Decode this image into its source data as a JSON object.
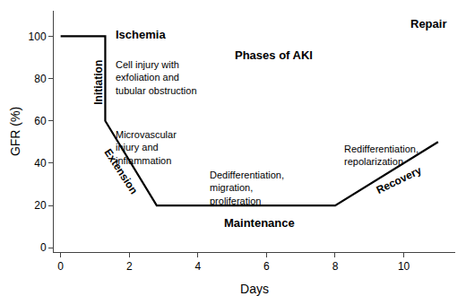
{
  "chart_data": {
    "type": "line",
    "x": [
      0,
      1.3,
      1.3,
      2.8,
      4.0,
      8.0,
      11.0
    ],
    "values": [
      100,
      100,
      60,
      20,
      20,
      20,
      50
    ],
    "color": "#000000",
    "xlim": [
      -0.2,
      11.5
    ],
    "ylim": [
      -2,
      112
    ],
    "xticks": [
      0,
      2,
      4,
      6,
      8,
      10
    ],
    "yticks": [
      0,
      20,
      40,
      60,
      80,
      100
    ],
    "xlabel": "Days",
    "ylabel": "GFR (%)",
    "grid": false,
    "annotations": [
      {
        "text": "Ischemia",
        "x": 1.55,
        "y": 105
      },
      {
        "text": "Repair",
        "x": 11.3,
        "y": 110
      },
      {
        "text": "Phases of AKI",
        "x": 6.2,
        "y": 95
      },
      {
        "text": "Cell injury with\nexfoliation and\ntubular obstruction",
        "x": 1.55,
        "y": 90
      },
      {
        "text": "Microvascular\ninjury and\ninflammation",
        "x": 1.55,
        "y": 57
      },
      {
        "text": "Dedifferentiation,\nmigration,\nproliferation",
        "x": 4.3,
        "y": 38
      },
      {
        "text": "Redifferentiation,\nrepolarization",
        "x": 8.2,
        "y": 50
      },
      {
        "text": "Maintenance",
        "x": 5.8,
        "y": 16
      },
      {
        "text": "Initiation",
        "x": 1.12,
        "y": 78
      },
      {
        "text": "Extension",
        "x": 1.75,
        "y": 36
      },
      {
        "text": "Recovery",
        "x": 9.85,
        "y": 32
      }
    ]
  }
}
